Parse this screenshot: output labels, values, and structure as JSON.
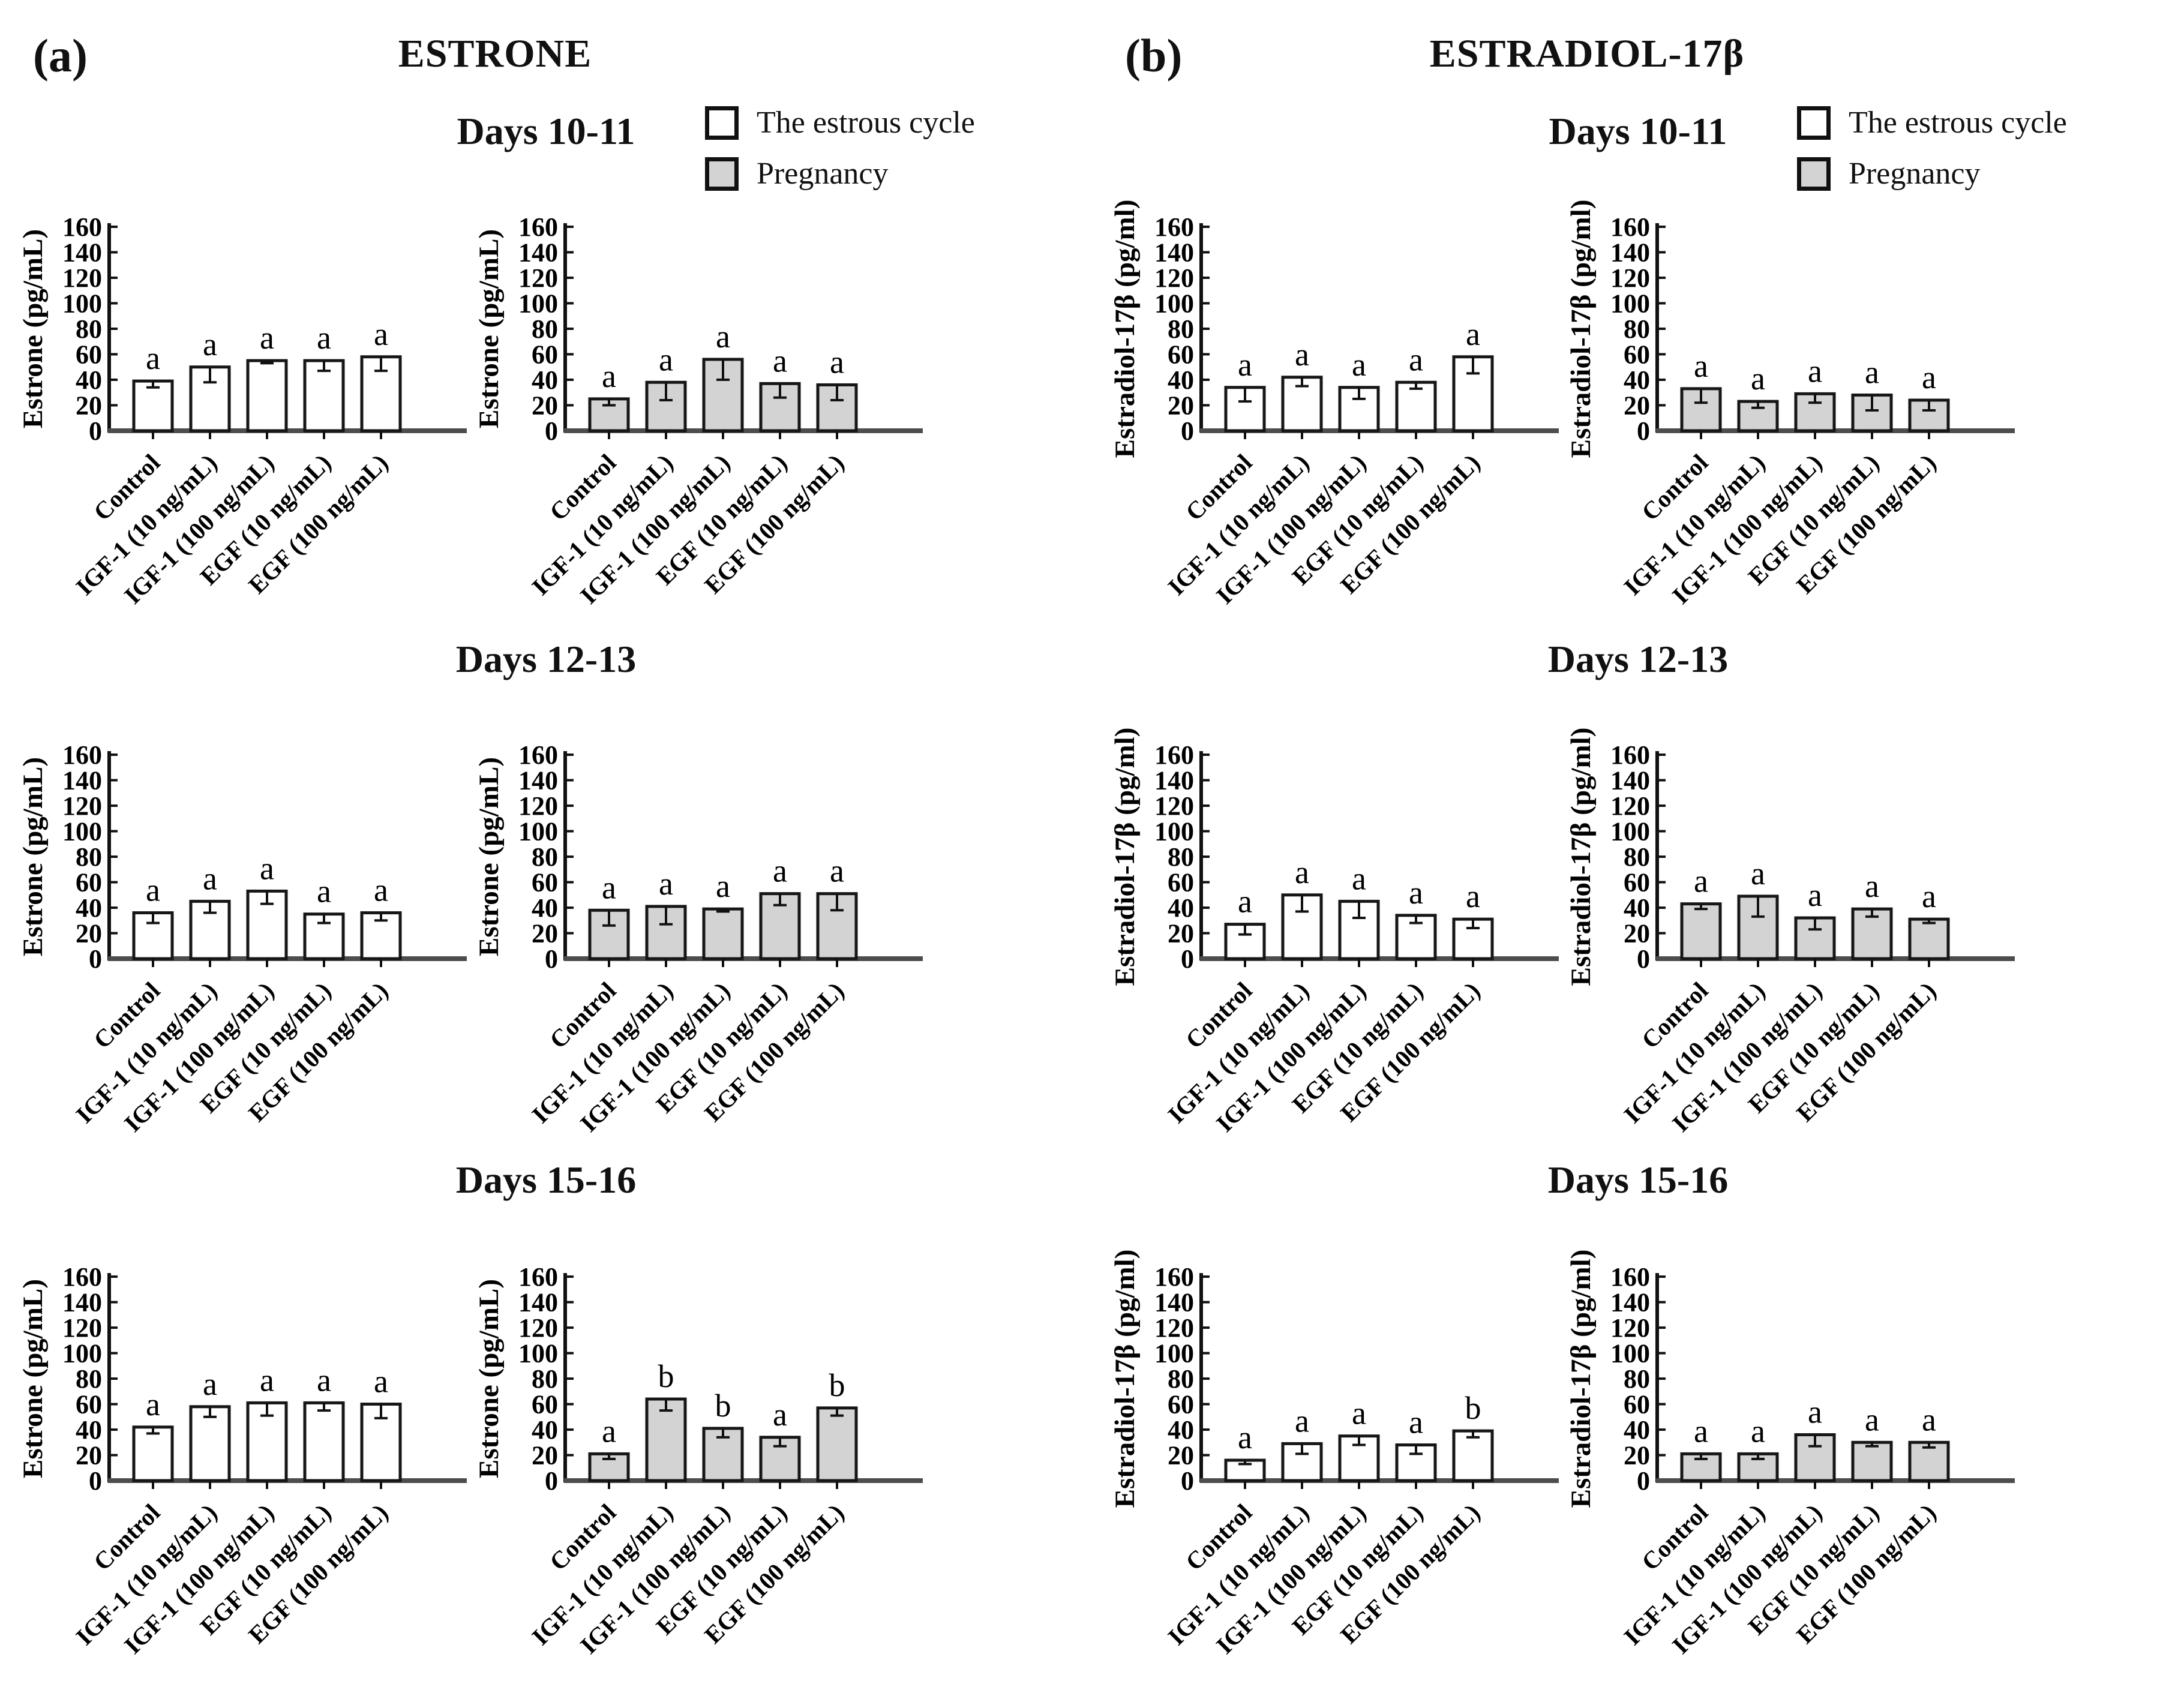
{
  "figure": {
    "background": "#ffffff",
    "bar_outline": "#161616",
    "axis_color": "#4d4d4d",
    "tick_text_color": "#111111",
    "estrous_fill": "#ffffff",
    "pregnancy_fill": "#d3d3d3",
    "yticks": [
      0,
      20,
      40,
      60,
      80,
      100,
      120,
      140,
      160
    ],
    "categories": [
      "Control",
      "IGF-1 (10 ng/mL)",
      "IGF-1 (100 ng/mL)",
      "EGF (10 ng/mL)",
      "EGF (100 ng/mL)"
    ],
    "legend": {
      "items": [
        {
          "label": "The estrous cycle",
          "fill": "#ffffff"
        },
        {
          "label": "Pregnancy",
          "fill": "#d3d3d3"
        }
      ]
    },
    "panels": [
      {
        "label": "(a)",
        "title": "ESTRONE",
        "ylabel": "Estrone (pg/mL)",
        "rows": [
          {
            "title": "Days 10-11"
          },
          {
            "title": "Days 12-13"
          },
          {
            "title": "Days 15-16"
          }
        ]
      },
      {
        "label": "(b)",
        "title": "ESTRADIOL-17β",
        "ylabel": "Estradiol-17β (pg/ml)",
        "rows": [
          {
            "title": "Days 10-11"
          },
          {
            "title": "Days 12-13"
          },
          {
            "title": "Days 15-16"
          }
        ]
      }
    ]
  },
  "chart_data": [
    {
      "type": "bar",
      "panel": "a",
      "group": "Days 10-11",
      "series": "The estrous cycle",
      "fill": "#ffffff",
      "ylabel": "Estrone (pg/mL)",
      "ylim": [
        0,
        160
      ],
      "categories": [
        "Control",
        "IGF-1 (10 ng/mL)",
        "IGF-1 (100 ng/mL)",
        "EGF (10 ng/mL)",
        "EGF (100 ng/mL)"
      ],
      "values": [
        39,
        50,
        55,
        55,
        58
      ],
      "errors": [
        5,
        12,
        2,
        8,
        11
      ],
      "sig_letters": [
        "a",
        "a",
        "a",
        "a",
        "a"
      ]
    },
    {
      "type": "bar",
      "panel": "a",
      "group": "Days 10-11",
      "series": "Pregnancy",
      "fill": "#d3d3d3",
      "ylabel": "Estrone (pg/mL)",
      "ylim": [
        0,
        160
      ],
      "categories": [
        "Control",
        "IGF-1 (10 ng/mL)",
        "IGF-1 (100 ng/mL)",
        "EGF (10 ng/mL)",
        "EGF (100 ng/mL)"
      ],
      "values": [
        25,
        38,
        56,
        37,
        36
      ],
      "errors": [
        5,
        14,
        16,
        11,
        12
      ],
      "sig_letters": [
        "a",
        "a",
        "a",
        "a",
        "a"
      ]
    },
    {
      "type": "bar",
      "panel": "a",
      "group": "Days 12-13",
      "series": "The estrous cycle",
      "fill": "#ffffff",
      "ylabel": "Estrone (pg/mL)",
      "ylim": [
        0,
        160
      ],
      "categories": [
        "Control",
        "IGF-1 (10 ng/mL)",
        "IGF-1 (100 ng/mL)",
        "EGF (10 ng/mL)",
        "EGF (100 ng/mL)"
      ],
      "values": [
        36,
        45,
        53,
        35,
        36
      ],
      "errors": [
        8,
        9,
        10,
        7,
        6
      ],
      "sig_letters": [
        "a",
        "a",
        "a",
        "a",
        "a"
      ]
    },
    {
      "type": "bar",
      "panel": "a",
      "group": "Days 12-13",
      "series": "Pregnancy",
      "fill": "#d3d3d3",
      "ylabel": "Estrone (pg/mL)",
      "ylim": [
        0,
        160
      ],
      "categories": [
        "Control",
        "IGF-1 (10 ng/mL)",
        "IGF-1 (100 ng/mL)",
        "EGF (10 ng/mL)",
        "EGF (100 ng/mL)"
      ],
      "values": [
        38,
        41,
        39,
        51,
        51
      ],
      "errors": [
        12,
        14,
        2,
        9,
        13
      ],
      "sig_letters": [
        "a",
        "a",
        "a",
        "a",
        "a"
      ]
    },
    {
      "type": "bar",
      "panel": "a",
      "group": "Days 15-16",
      "series": "The estrous cycle",
      "fill": "#ffffff",
      "ylabel": "Estrone (pg/mL)",
      "ylim": [
        0,
        160
      ],
      "categories": [
        "Control",
        "IGF-1 (10 ng/mL)",
        "IGF-1 (100 ng/mL)",
        "EGF (10 ng/mL)",
        "EGF (100 ng/mL)"
      ],
      "values": [
        42,
        58,
        61,
        61,
        60
      ],
      "errors": [
        5,
        8,
        10,
        6,
        11
      ],
      "sig_letters": [
        "a",
        "a",
        "a",
        "a",
        "a"
      ]
    },
    {
      "type": "bar",
      "panel": "a",
      "group": "Days 15-16",
      "series": "Pregnancy",
      "fill": "#d3d3d3",
      "ylabel": "Estrone (pg/mL)",
      "ylim": [
        0,
        160
      ],
      "categories": [
        "Control",
        "IGF-1 (10 ng/mL)",
        "IGF-1 (100 ng/mL)",
        "EGF (10 ng/mL)",
        "EGF (100 ng/mL)"
      ],
      "values": [
        21,
        64,
        41,
        34,
        57
      ],
      "errors": [
        4,
        9,
        7,
        7,
        6
      ],
      "sig_letters": [
        "a",
        "b",
        "b",
        "a",
        "b"
      ]
    },
    {
      "type": "bar",
      "panel": "b",
      "group": "Days 10-11",
      "series": "The estrous cycle",
      "fill": "#ffffff",
      "ylabel": "Estradiol-17β (pg/ml)",
      "ylim": [
        0,
        160
      ],
      "categories": [
        "Control",
        "IGF-1 (10 ng/mL)",
        "IGF-1 (100 ng/mL)",
        "EGF (10 ng/mL)",
        "EGF (100 ng/mL)"
      ],
      "values": [
        34,
        42,
        34,
        38,
        58
      ],
      "errors": [
        11,
        7,
        9,
        5,
        13
      ],
      "sig_letters": [
        "a",
        "a",
        "a",
        "a",
        "a"
      ]
    },
    {
      "type": "bar",
      "panel": "b",
      "group": "Days 10-11",
      "series": "Pregnancy",
      "fill": "#d3d3d3",
      "ylabel": "Estradiol-17β (pg/ml)",
      "ylim": [
        0,
        160
      ],
      "categories": [
        "Control",
        "IGF-1 (10 ng/mL)",
        "IGF-1 (100 ng/mL)",
        "EGF (10 ng/mL)",
        "EGF (100 ng/mL)"
      ],
      "values": [
        33,
        23,
        29,
        28,
        24
      ],
      "errors": [
        11,
        5,
        7,
        12,
        8
      ],
      "sig_letters": [
        "a",
        "a",
        "a",
        "a",
        "a"
      ]
    },
    {
      "type": "bar",
      "panel": "b",
      "group": "Days 12-13",
      "series": "The estrous cycle",
      "fill": "#ffffff",
      "ylabel": "Estradiol-17β (pg/ml)",
      "ylim": [
        0,
        160
      ],
      "categories": [
        "Control",
        "IGF-1 (10 ng/mL)",
        "IGF-1 (100 ng/mL)",
        "EGF (10 ng/mL)",
        "EGF (100 ng/mL)"
      ],
      "values": [
        27,
        50,
        45,
        34,
        31
      ],
      "errors": [
        8,
        13,
        13,
        6,
        7
      ],
      "sig_letters": [
        "a",
        "a",
        "a",
        "a",
        "a"
      ]
    },
    {
      "type": "bar",
      "panel": "b",
      "group": "Days 12-13",
      "series": "Pregnancy",
      "fill": "#d3d3d3",
      "ylabel": "Estradiol-17β (pg/ml)",
      "ylim": [
        0,
        160
      ],
      "categories": [
        "Control",
        "IGF-1 (10 ng/mL)",
        "IGF-1 (100 ng/mL)",
        "EGF (10 ng/mL)",
        "EGF (100 ng/mL)"
      ],
      "values": [
        43,
        49,
        32,
        39,
        31
      ],
      "errors": [
        4,
        16,
        9,
        6,
        3
      ],
      "sig_letters": [
        "a",
        "a",
        "a",
        "a",
        "a"
      ]
    },
    {
      "type": "bar",
      "panel": "b",
      "group": "Days 15-16",
      "series": "The estrous cycle",
      "fill": "#ffffff",
      "ylabel": "Estradiol-17β (pg/ml)",
      "ylim": [
        0,
        160
      ],
      "categories": [
        "Control",
        "IGF-1 (10 ng/mL)",
        "IGF-1 (100 ng/mL)",
        "EGF (10 ng/mL)",
        "EGF (100 ng/mL)"
      ],
      "values": [
        16,
        29,
        35,
        28,
        39
      ],
      "errors": [
        3,
        8,
        7,
        7,
        5
      ],
      "sig_letters": [
        "a",
        "a",
        "a",
        "a",
        "b"
      ]
    },
    {
      "type": "bar",
      "panel": "b",
      "group": "Days 15-16",
      "series": "Pregnancy",
      "fill": "#d3d3d3",
      "ylabel": "Estradiol-17β (pg/ml)",
      "ylim": [
        0,
        160
      ],
      "categories": [
        "Control",
        "IGF-1 (10 ng/mL)",
        "IGF-1 (100 ng/mL)",
        "EGF (10 ng/mL)",
        "EGF (100 ng/mL)"
      ],
      "values": [
        21,
        21,
        36,
        30,
        30
      ],
      "errors": [
        4,
        4,
        9,
        3,
        4
      ],
      "sig_letters": [
        "a",
        "a",
        "a",
        "a",
        "a"
      ]
    }
  ]
}
